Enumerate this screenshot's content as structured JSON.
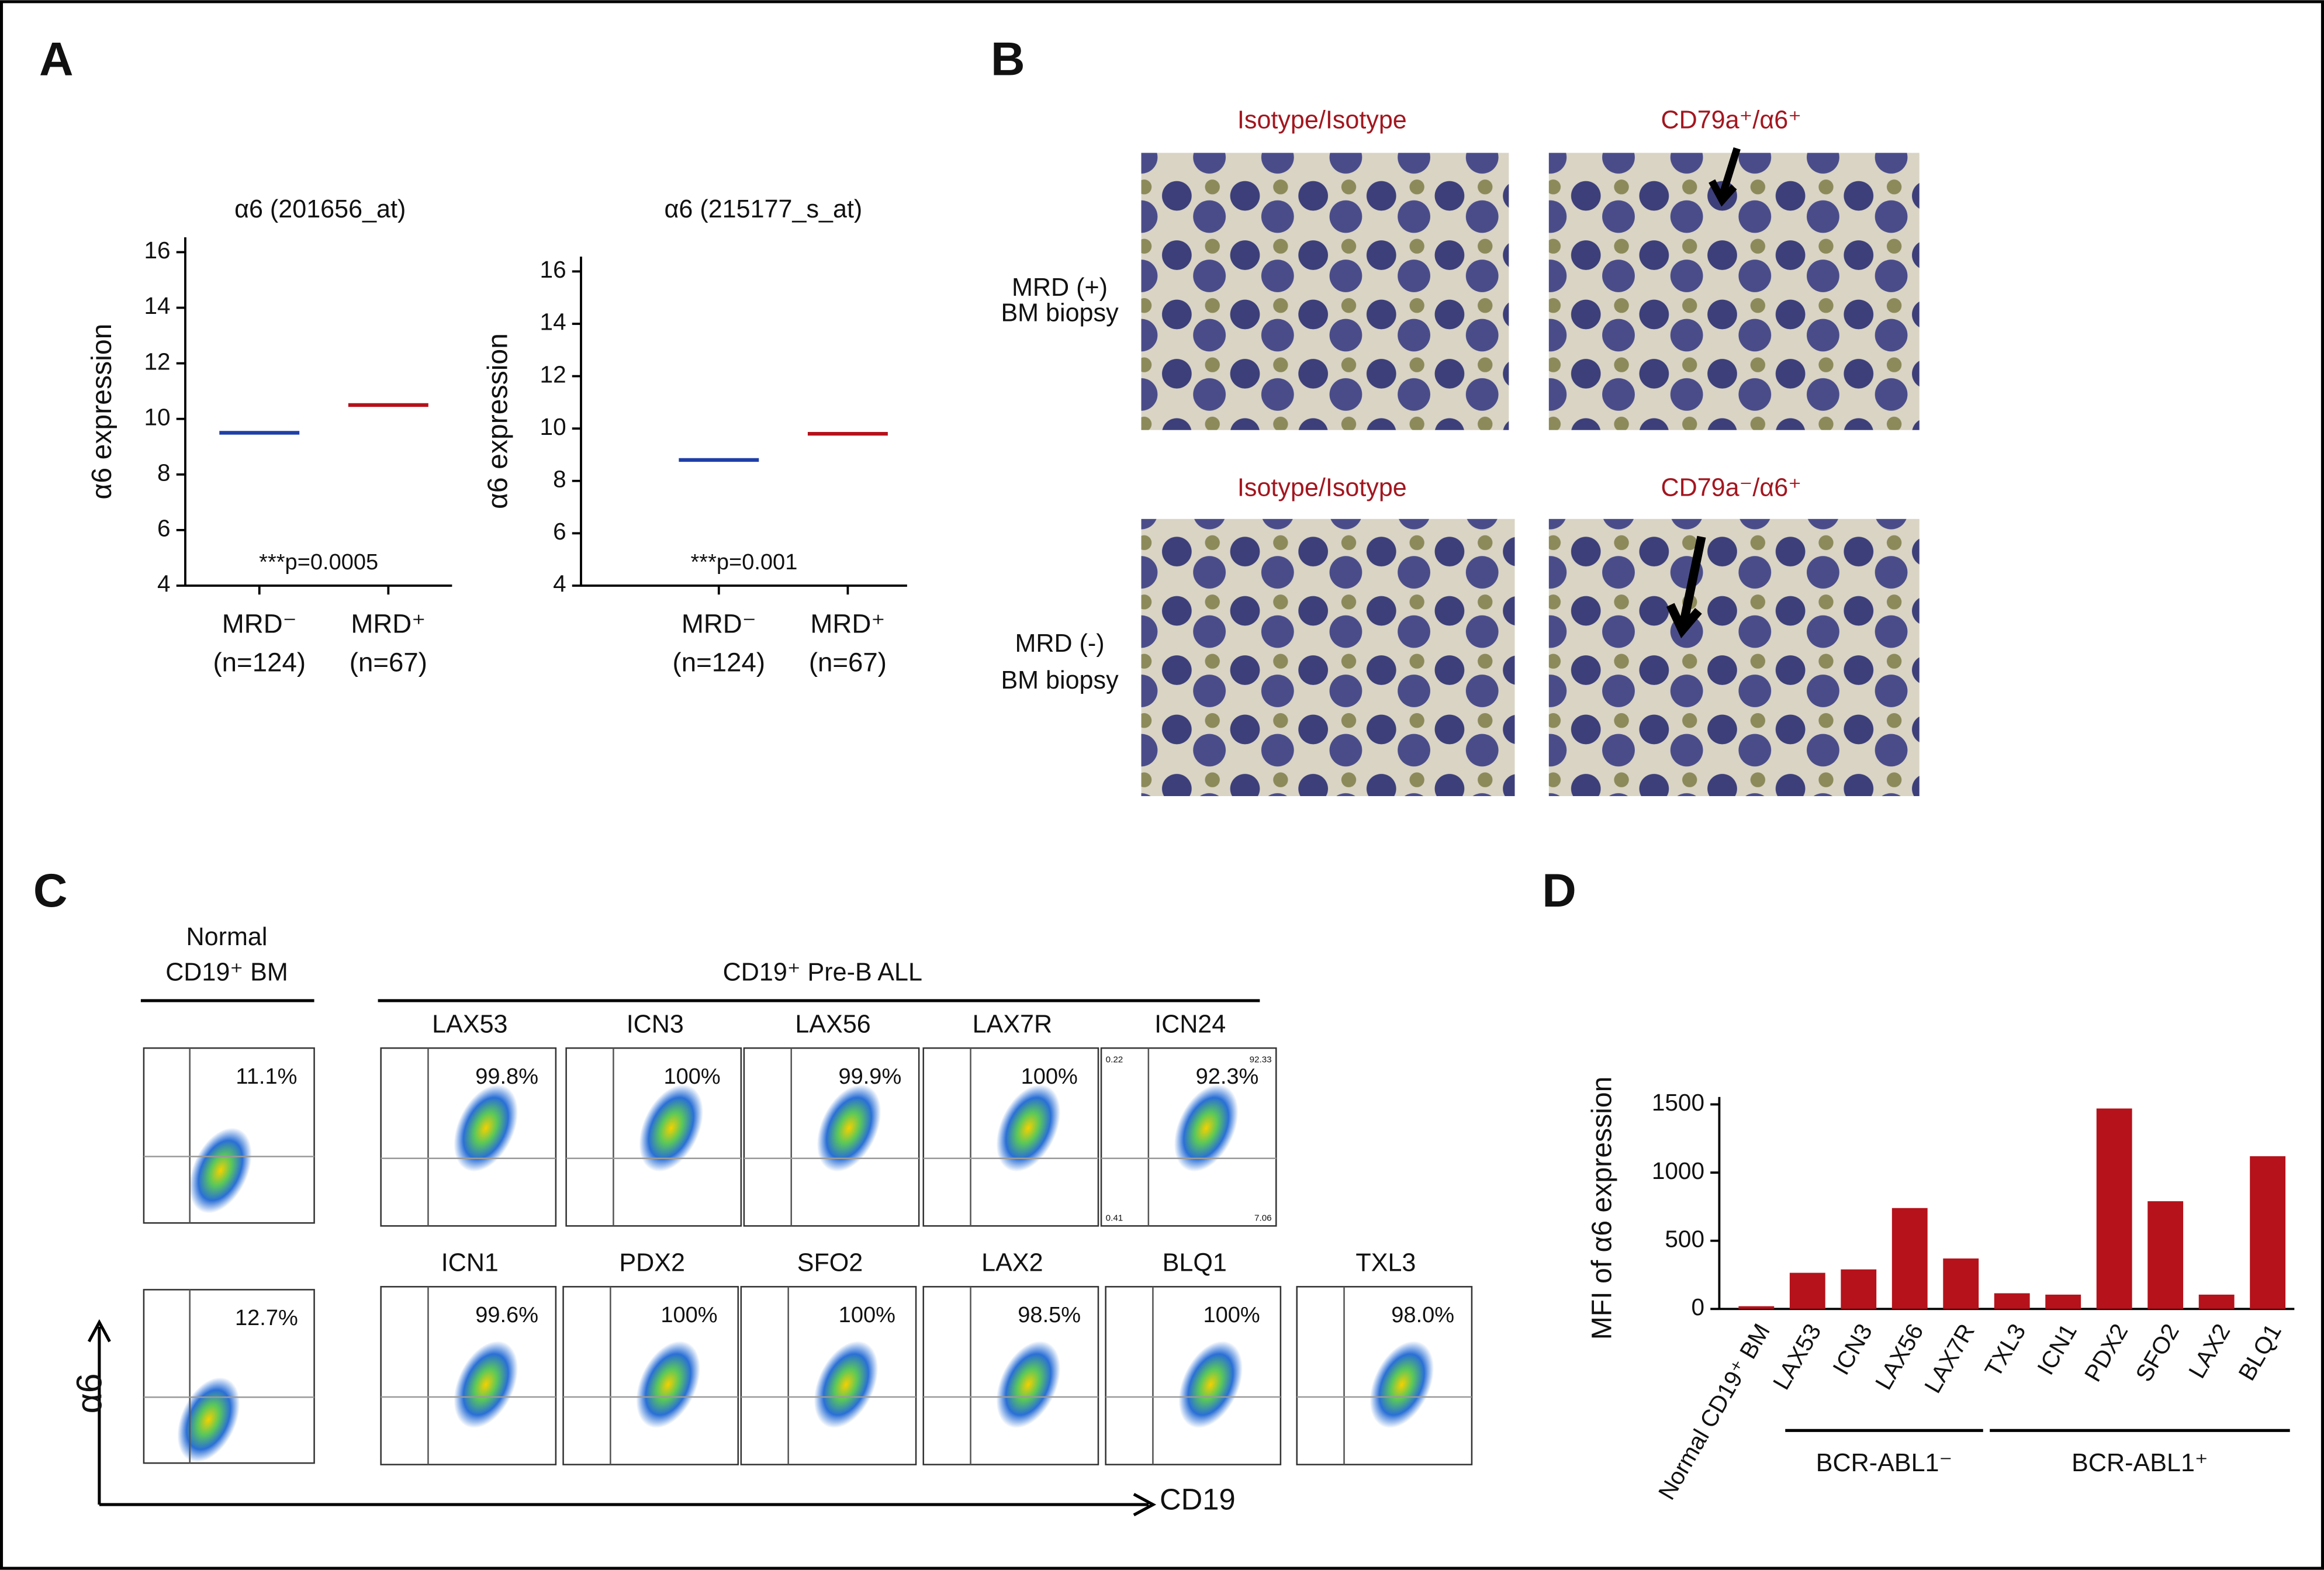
{
  "panel_letters": [
    "A",
    "B",
    "C",
    "D"
  ],
  "chart_data": [
    {
      "type": "strip",
      "title": "α6 (201656_at)",
      "y_label": "α6 expression",
      "categories": [
        "MRD⁻",
        "MRD⁺"
      ],
      "sublabels": [
        "(n=124)",
        "(n=67)"
      ],
      "values": [
        9.5,
        10.5
      ],
      "colors": [
        "#1f3fa8",
        "#b5121b"
      ],
      "annotation": "***p=0.0005",
      "ylim": [
        4,
        16
      ],
      "yticks": [
        4,
        6,
        8,
        10,
        12,
        14,
        16
      ]
    },
    {
      "type": "strip",
      "title": "α6 (215177_s_at)",
      "y_label": "α6 expression",
      "categories": [
        "MRD⁻",
        "MRD⁺"
      ],
      "sublabels": [
        "(n=124)",
        "(n=67)"
      ],
      "values": [
        8.8,
        9.8
      ],
      "colors": [
        "#1f3fa8",
        "#b5121b"
      ],
      "annotation": "***p=0.001",
      "ylim": [
        4,
        16
      ],
      "yticks": [
        4,
        6,
        8,
        10,
        12,
        14,
        16
      ]
    },
    {
      "type": "bar",
      "y_label": "MFI of α6 expression",
      "categories": [
        "Normal CD19⁺ BM",
        "LAX53",
        "ICN3",
        "LAX56",
        "LAX7R",
        "TXL3",
        "ICN1",
        "PDX2",
        "SFO2",
        "LAX2",
        "BLQ1"
      ],
      "values": [
        20,
        265,
        290,
        740,
        370,
        115,
        105,
        1470,
        790,
        105,
        1120
      ],
      "color": "#b5121b",
      "groups": [
        "BCR-ABL1⁻",
        "BCR-ABL1⁺"
      ],
      "ylim": [
        0,
        1500
      ],
      "yticks": [
        0,
        500,
        1000,
        1500
      ]
    }
  ],
  "panel_b": {
    "column_headers": [
      "Isotype/Isotype",
      "CD79a⁺/α6⁺",
      "Isotype/Isotype",
      "CD79a⁻/α6⁺"
    ],
    "row_labels": [
      [
        "MRD (+)",
        "BM biopsy"
      ],
      [
        "MRD (-)",
        "BM biopsy"
      ]
    ]
  },
  "panel_c": {
    "normal_header": [
      "Normal",
      "CD19⁺ BM"
    ],
    "group_header": "CD19⁺  Pre-B ALL",
    "y_axis": "α6",
    "x_axis": "CD19",
    "normal": [
      "11.1%",
      "12.7%"
    ],
    "rows": [
      [
        {
          "name": "LAX53",
          "pct": "99.8%"
        },
        {
          "name": "ICN3",
          "pct": "100%"
        },
        {
          "name": "LAX56",
          "pct": "99.9%"
        },
        {
          "name": "LAX7R",
          "pct": "100%"
        },
        {
          "name": "ICN24",
          "pct": "92.3%"
        }
      ],
      [
        {
          "name": "ICN1",
          "pct": "99.6%"
        },
        {
          "name": "PDX2",
          "pct": "100%"
        },
        {
          "name": "SFO2",
          "pct": "100%"
        },
        {
          "name": "LAX2",
          "pct": "98.5%"
        },
        {
          "name": "BLQ1",
          "pct": "100%"
        },
        {
          "name": "TXL3",
          "pct": "98.0%"
        }
      ]
    ],
    "icn24_corners": [
      "0.22",
      "92.33",
      "0.41",
      "7.06"
    ]
  }
}
